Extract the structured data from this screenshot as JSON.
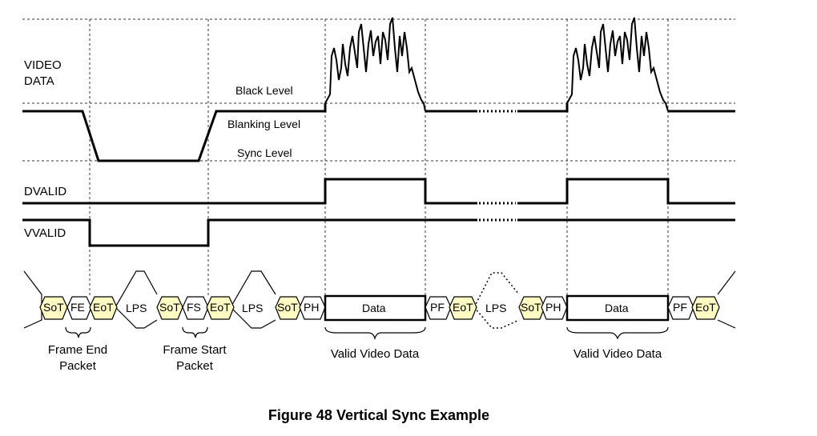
{
  "signals": {
    "video": [
      "VIDEO",
      "DATA"
    ],
    "dvalid": "DVALID",
    "vvalid": "VVALID"
  },
  "levels": {
    "black": "Black Level",
    "blanking": "Blanking Level",
    "sync": "Sync Level"
  },
  "packets": {
    "sot": "SoT",
    "eot": "EoT",
    "fe": "FE",
    "fs": "FS",
    "lps": "LPS",
    "ph": "PH",
    "pf": "PF",
    "data": "Data"
  },
  "captions": {
    "frame_end": [
      "Frame End",
      "Packet"
    ],
    "frame_start": [
      "Frame Start",
      "Packet"
    ],
    "valid_video_1": "Valid Video Data",
    "valid_video_2": "Valid Video Data"
  },
  "figure_title": "Figure 48 Vertical Sync Example"
}
